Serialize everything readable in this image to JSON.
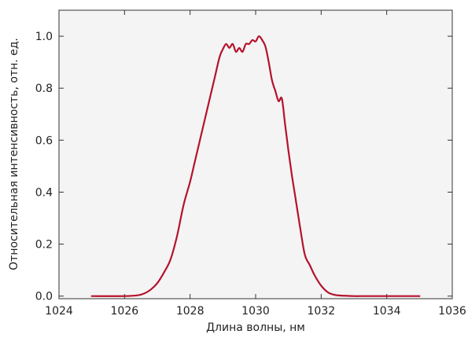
{
  "chart_data": {
    "type": "line",
    "title": "",
    "xlabel": "Длина волны, нм",
    "ylabel": "Относительная интенсивность, отн. ед.",
    "xlim": [
      1024,
      1036
    ],
    "ylim": [
      -0.01,
      1.1
    ],
    "xticks": [
      1024,
      1026,
      1028,
      1030,
      1032,
      1034,
      1036
    ],
    "xtick_labels": [
      "1024",
      "1026",
      "1028",
      "1030",
      "1032",
      "1034",
      "1036"
    ],
    "yticks": [
      0.0,
      0.2,
      0.4,
      0.6,
      0.8,
      1.0
    ],
    "ytick_labels": [
      "0.0",
      "0.2",
      "0.4",
      "0.6",
      "0.8",
      "1.0"
    ],
    "grid": false,
    "legend": "none",
    "colors": {
      "line": "#b5122c",
      "plot_background": "#f4f4f4",
      "axes": "#333333"
    },
    "series": [
      {
        "x": [
          1025.0,
          1026.0,
          1026.4,
          1026.6,
          1026.8,
          1027.0,
          1027.2,
          1027.4,
          1027.6,
          1027.8,
          1028.0,
          1028.15,
          1028.3,
          1028.45,
          1028.6,
          1028.75,
          1028.9,
          1029.0,
          1029.1,
          1029.2,
          1029.3,
          1029.4,
          1029.5,
          1029.6,
          1029.7,
          1029.8,
          1029.9,
          1030.0,
          1030.1,
          1030.2,
          1030.3,
          1030.4,
          1030.5,
          1030.6,
          1030.7,
          1030.8,
          1030.9,
          1031.0,
          1031.1,
          1031.2,
          1031.35,
          1031.5,
          1031.65,
          1031.8,
          1032.0,
          1032.2,
          1032.4,
          1032.6,
          1032.8,
          1033.0,
          1033.3,
          1033.6,
          1034.0,
          1035.0
        ],
        "y": [
          0.0,
          0.0,
          0.003,
          0.01,
          0.025,
          0.05,
          0.09,
          0.14,
          0.23,
          0.35,
          0.44,
          0.52,
          0.6,
          0.68,
          0.76,
          0.84,
          0.92,
          0.95,
          0.97,
          0.955,
          0.97,
          0.94,
          0.955,
          0.94,
          0.97,
          0.97,
          0.985,
          0.98,
          1.0,
          0.985,
          0.96,
          0.9,
          0.83,
          0.79,
          0.75,
          0.76,
          0.66,
          0.56,
          0.47,
          0.39,
          0.27,
          0.16,
          0.12,
          0.08,
          0.04,
          0.015,
          0.005,
          0.002,
          0.001,
          0.0,
          0.0,
          0.0,
          0.0,
          0.0
        ]
      }
    ]
  }
}
